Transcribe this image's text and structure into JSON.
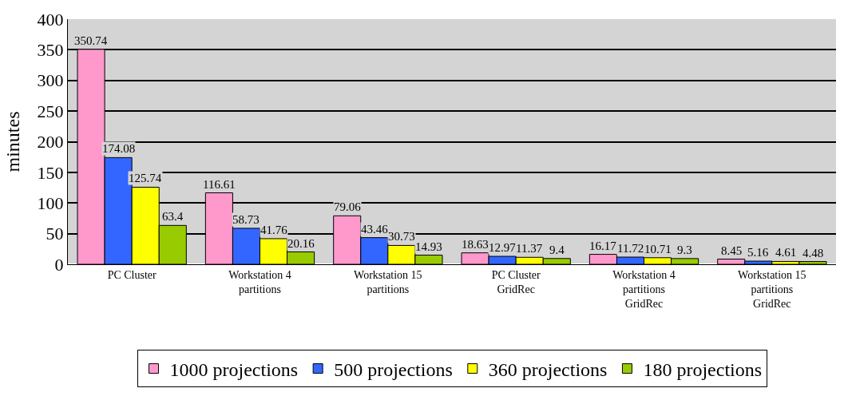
{
  "chart_data": {
    "type": "bar",
    "ylabel": "minutes",
    "categories": [
      "PC Cluster",
      "Workstation 4 partitions",
      "Workstation 15 partitions",
      "PC Cluster GridRec",
      "Workstation 4 partitions GridRec",
      "Workstation 15 partitions GridRec"
    ],
    "series": [
      {
        "name": "1000 projections",
        "color": "#ff99cc",
        "values": [
          350.74,
          116.61,
          79.06,
          18.63,
          16.17,
          8.45
        ]
      },
      {
        "name": "500 projections",
        "color": "#3366ff",
        "values": [
          174.08,
          58.73,
          43.46,
          12.97,
          11.72,
          5.16
        ]
      },
      {
        "name": "360 projections",
        "color": "#ffff00",
        "values": [
          125.74,
          41.76,
          30.73,
          11.37,
          10.71,
          4.61
        ]
      },
      {
        "name": "180 projections",
        "color": "#99cc00",
        "values": [
          63.4,
          20.16,
          14.93,
          9.4,
          9.3,
          4.48
        ]
      }
    ],
    "ylim": [
      0,
      400
    ],
    "yticks": [
      0,
      50,
      100,
      150,
      200,
      250,
      300,
      350,
      400
    ],
    "grid": "y",
    "legend": "bottom",
    "data_labels": true
  }
}
